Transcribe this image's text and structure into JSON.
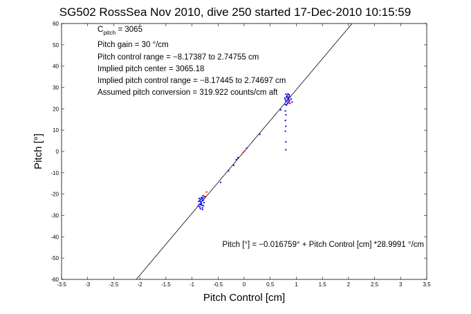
{
  "chart_data": {
    "type": "scatter",
    "title": "SG502 RossSea Nov 2010, dive 250 started 17-Dec-2010 10:15:59",
    "xlabel": "Pitch Control [cm]",
    "ylabel": "Pitch [°]",
    "xlim": [
      -3.5,
      3.5
    ],
    "ylim": [
      -60,
      60
    ],
    "xticks": [
      -3.5,
      -3,
      -2.5,
      -2,
      -1.5,
      -1,
      -0.5,
      0,
      0.5,
      1,
      1.5,
      2,
      2.5,
      3,
      3.5
    ],
    "yticks": [
      -60,
      -50,
      -40,
      -30,
      -20,
      -10,
      0,
      10,
      20,
      30,
      40,
      50,
      60
    ],
    "grid": false,
    "annotations": {
      "c_pitch_main": "C",
      "c_pitch_sub": "pitch",
      "c_pitch_value": " = 3065",
      "pitch_gain": "Pitch gain = 30 °/cm",
      "control_range": "Pitch control range = −8.17387 to 2.74755 cm",
      "implied_center": "Implied pitch center = 3065.18",
      "implied_range": "Implied pitch control range = −8.17445 to 2.74697 cm",
      "assumed_conversion": "Assumed pitch conversion = 319.922 counts/cm aft",
      "fit_equation": "Pitch [°] = −0.016759° + Pitch Control [cm] *28.9991 °/cm"
    },
    "fit_line": {
      "intercept": -0.016759,
      "slope": 28.9991
    },
    "series": [
      {
        "color": "#0000ff",
        "points": [
          [
            0.78,
            25.0
          ],
          [
            0.79,
            24.2
          ],
          [
            0.8,
            23.4
          ],
          [
            0.81,
            25.6
          ],
          [
            0.82,
            26.2
          ],
          [
            0.83,
            24.8
          ],
          [
            0.84,
            23.0
          ],
          [
            0.85,
            25.3
          ],
          [
            0.86,
            26.6
          ],
          [
            0.87,
            24.0
          ],
          [
            0.88,
            22.6
          ],
          [
            0.8,
            26.9
          ],
          [
            0.83,
            22.4
          ],
          [
            0.86,
            23.6
          ],
          [
            0.79,
            22.0
          ],
          [
            0.84,
            27.0
          ],
          [
            0.81,
            21.8
          ],
          [
            0.87,
            25.9
          ],
          [
            0.82,
            23.8
          ],
          [
            0.85,
            24.5
          ],
          [
            0.9,
            24.6
          ],
          [
            0.92,
            23.2
          ],
          [
            0.79,
            19.0
          ],
          [
            0.79,
            14.5
          ],
          [
            0.79,
            9.5
          ],
          [
            0.8,
            4.5
          ],
          [
            0.8,
            0.8
          ],
          [
            0.8,
            17.2
          ],
          [
            0.8,
            11.8
          ],
          [
            -0.84,
            -22.5
          ],
          [
            -0.83,
            -23.6
          ],
          [
            -0.82,
            -24.4
          ],
          [
            -0.81,
            -25.2
          ],
          [
            -0.8,
            -23.0
          ],
          [
            -0.79,
            -21.8
          ],
          [
            -0.78,
            -22.8
          ],
          [
            -0.85,
            -26.0
          ],
          [
            -0.86,
            -24.8
          ],
          [
            -0.87,
            -23.4
          ],
          [
            -0.8,
            -26.4
          ],
          [
            -0.82,
            -21.6
          ],
          [
            -0.77,
            -24.0
          ],
          [
            -0.88,
            -25.6
          ],
          [
            -0.84,
            -26.8
          ],
          [
            -0.79,
            -20.8
          ],
          [
            -0.81,
            -22.2
          ],
          [
            -0.83,
            -25.0
          ],
          [
            -0.86,
            -22.0
          ],
          [
            -0.78,
            -25.4
          ],
          [
            -0.75,
            -21.4
          ],
          [
            -0.8,
            -27.2
          ],
          [
            -0.85,
            -23.2
          ],
          [
            -0.15,
            -3.8
          ],
          [
            -0.12,
            -2.9
          ],
          [
            -0.45,
            -14.5
          ],
          [
            -0.3,
            -9.0
          ],
          [
            -0.2,
            -6.5
          ],
          [
            0.05,
            1.5
          ],
          [
            0.7,
            19.5
          ],
          [
            0.3,
            8.0
          ]
        ]
      },
      {
        "color": "#ff0000",
        "points": [
          [
            -0.72,
            -19.0
          ],
          [
            -0.76,
            -21.0
          ],
          [
            0.01,
            0.3
          ],
          [
            -0.02,
            -0.5
          ],
          [
            0.83,
            25.6
          ],
          [
            0.85,
            22.9
          ]
        ]
      }
    ]
  }
}
